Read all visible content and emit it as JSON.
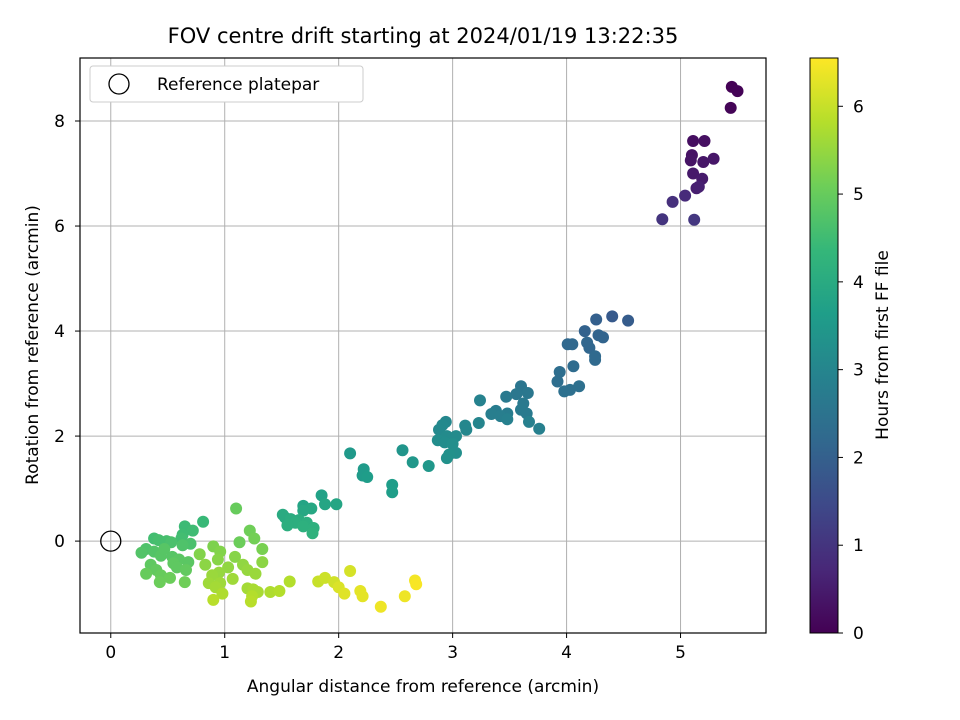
{
  "chart_data": {
    "type": "scatter",
    "title": "FOV centre drift starting at 2024/01/19 13:22:35",
    "xlabel": "Angular distance from reference (arcmin)",
    "ylabel": "Rotation from reference (arcmin)",
    "xlim": [
      -0.27,
      5.75
    ],
    "ylim": [
      -1.75,
      9.2
    ],
    "xticks": [
      0,
      1,
      2,
      3,
      4,
      5
    ],
    "yticks": [
      0,
      2,
      4,
      6,
      8
    ],
    "grid": true,
    "legend": {
      "position": "top-left",
      "entries": [
        "Reference platepar"
      ]
    },
    "reference_point": {
      "x": 0,
      "y": 0,
      "label": "Reference platepar"
    },
    "colorbar": {
      "label": "Hours from first FF file",
      "range": [
        0,
        6.55
      ],
      "ticks": [
        0,
        1,
        2,
        3,
        4,
        5,
        6
      ],
      "colormap": "viridis"
    },
    "colors": {
      "viridis": [
        "#440154",
        "#482878",
        "#3e4989",
        "#31688e",
        "#26828e",
        "#1f9e89",
        "#35b779",
        "#6ece58",
        "#b5de2b",
        "#fde725"
      ]
    },
    "points": [
      [
        5.45,
        8.65,
        0.02
      ],
      [
        5.5,
        8.57,
        0.04
      ],
      [
        5.44,
        8.25,
        0.07
      ],
      [
        5.11,
        7.62,
        0.25
      ],
      [
        5.21,
        7.62,
        0.28
      ],
      [
        5.1,
        7.35,
        0.32
      ],
      [
        5.09,
        7.25,
        0.35
      ],
      [
        5.2,
        7.22,
        0.38
      ],
      [
        5.29,
        7.28,
        0.4
      ],
      [
        5.11,
        7.0,
        0.45
      ],
      [
        5.19,
        6.9,
        0.48
      ],
      [
        5.14,
        6.72,
        0.55
      ],
      [
        5.16,
        6.75,
        0.58
      ],
      [
        5.04,
        6.58,
        0.8
      ],
      [
        4.93,
        6.46,
        0.9
      ],
      [
        4.84,
        6.13,
        1.0
      ],
      [
        5.12,
        6.12,
        1.05
      ],
      [
        4.4,
        4.28,
        1.85
      ],
      [
        4.54,
        4.2,
        1.9
      ],
      [
        4.26,
        4.22,
        2.0
      ],
      [
        4.16,
        4.0,
        2.05
      ],
      [
        4.28,
        3.92,
        2.1
      ],
      [
        4.32,
        3.88,
        2.1
      ],
      [
        4.18,
        3.78,
        2.15
      ],
      [
        4.2,
        3.68,
        2.15
      ],
      [
        4.01,
        3.75,
        2.2
      ],
      [
        4.05,
        3.75,
        2.2
      ],
      [
        4.25,
        3.52,
        2.25
      ],
      [
        4.25,
        3.45,
        2.25
      ],
      [
        4.06,
        3.33,
        2.3
      ],
      [
        3.94,
        3.22,
        2.35
      ],
      [
        3.92,
        3.04,
        2.35
      ],
      [
        4.11,
        2.95,
        2.4
      ],
      [
        3.98,
        2.85,
        2.4
      ],
      [
        4.03,
        2.88,
        2.4
      ],
      [
        3.6,
        2.95,
        2.55
      ],
      [
        3.66,
        2.82,
        2.6
      ],
      [
        3.56,
        2.8,
        2.6
      ],
      [
        3.47,
        2.75,
        2.65
      ],
      [
        3.62,
        2.62,
        2.65
      ],
      [
        3.6,
        2.5,
        2.7
      ],
      [
        3.65,
        2.43,
        2.7
      ],
      [
        3.48,
        2.43,
        2.75
      ],
      [
        3.38,
        2.48,
        2.75
      ],
      [
        3.34,
        2.42,
        2.8
      ],
      [
        3.42,
        2.38,
        2.8
      ],
      [
        3.48,
        2.32,
        2.85
      ],
      [
        3.67,
        2.27,
        2.85
      ],
      [
        3.76,
        2.14,
        2.85
      ],
      [
        3.24,
        2.68,
        2.9
      ],
      [
        3.23,
        2.25,
        3.0
      ],
      [
        3.11,
        2.2,
        3.05
      ],
      [
        3.12,
        2.12,
        3.05
      ],
      [
        2.94,
        2.27,
        3.05
      ],
      [
        2.91,
        2.21,
        3.1
      ],
      [
        2.88,
        2.12,
        3.1
      ],
      [
        2.95,
        2.0,
        3.15
      ],
      [
        3.03,
        2.0,
        3.15
      ],
      [
        2.87,
        1.92,
        3.2
      ],
      [
        2.93,
        1.88,
        3.2
      ],
      [
        3.0,
        1.85,
        3.25
      ],
      [
        3.03,
        1.68,
        3.25
      ],
      [
        2.97,
        1.65,
        3.3
      ],
      [
        2.95,
        1.58,
        3.3
      ],
      [
        2.56,
        1.73,
        3.4
      ],
      [
        2.65,
        1.5,
        3.45
      ],
      [
        2.79,
        1.43,
        3.45
      ],
      [
        2.1,
        1.67,
        3.5
      ],
      [
        2.22,
        1.37,
        3.55
      ],
      [
        2.21,
        1.25,
        3.55
      ],
      [
        2.25,
        1.22,
        3.6
      ],
      [
        2.47,
        1.07,
        3.6
      ],
      [
        2.47,
        0.93,
        3.65
      ],
      [
        1.85,
        0.87,
        3.75
      ],
      [
        1.69,
        0.67,
        3.8
      ],
      [
        1.88,
        0.7,
        3.85
      ],
      [
        1.98,
        0.7,
        3.85
      ],
      [
        1.76,
        0.62,
        3.9
      ],
      [
        1.69,
        0.58,
        3.9
      ],
      [
        1.51,
        0.5,
        4.0
      ],
      [
        1.53,
        0.45,
        4.0
      ],
      [
        1.58,
        0.42,
        4.05
      ],
      [
        1.65,
        0.4,
        4.05
      ],
      [
        1.62,
        0.35,
        4.1
      ],
      [
        1.72,
        0.35,
        4.1
      ],
      [
        1.55,
        0.3,
        4.1
      ],
      [
        1.69,
        0.28,
        4.15
      ],
      [
        1.78,
        0.25,
        4.15
      ],
      [
        1.77,
        0.15,
        4.2
      ],
      [
        0.81,
        0.37,
        4.4
      ],
      [
        0.65,
        0.28,
        4.45
      ],
      [
        0.72,
        0.2,
        4.5
      ],
      [
        0.63,
        0.12,
        4.5
      ],
      [
        0.62,
        0.05,
        4.55
      ],
      [
        0.38,
        0.05,
        4.55
      ],
      [
        0.42,
        0.02,
        4.6
      ],
      [
        0.49,
        0.0,
        4.6
      ],
      [
        0.53,
        -0.02,
        4.65
      ],
      [
        0.7,
        -0.05,
        4.65
      ],
      [
        0.63,
        -0.08,
        4.7
      ],
      [
        0.31,
        -0.15,
        4.7
      ],
      [
        0.38,
        -0.2,
        4.75
      ],
      [
        0.27,
        -0.22,
        4.75
      ],
      [
        0.44,
        -0.28,
        4.8
      ],
      [
        0.47,
        -0.15,
        4.8
      ],
      [
        0.54,
        -0.3,
        4.8
      ],
      [
        0.6,
        -0.35,
        4.85
      ],
      [
        0.68,
        -0.4,
        4.85
      ],
      [
        0.55,
        -0.42,
        4.9
      ],
      [
        0.35,
        -0.45,
        4.9
      ],
      [
        0.58,
        -0.5,
        4.9
      ],
      [
        0.4,
        -0.55,
        4.95
      ],
      [
        0.66,
        -0.55,
        4.95
      ],
      [
        0.31,
        -0.62,
        5.0
      ],
      [
        0.44,
        -0.65,
        5.0
      ],
      [
        0.52,
        -0.7,
        5.05
      ],
      [
        0.43,
        -0.78,
        5.05
      ],
      [
        0.65,
        -0.78,
        5.1
      ],
      [
        1.1,
        0.62,
        5.0
      ],
      [
        1.13,
        -0.02,
        5.05
      ],
      [
        1.22,
        0.2,
        5.1
      ],
      [
        1.26,
        0.05,
        5.15
      ],
      [
        1.33,
        -0.15,
        5.2
      ],
      [
        0.9,
        -0.1,
        5.25
      ],
      [
        0.96,
        -0.2,
        5.3
      ],
      [
        0.78,
        -0.25,
        5.3
      ],
      [
        1.09,
        -0.3,
        5.35
      ],
      [
        0.94,
        -0.35,
        5.35
      ],
      [
        1.33,
        -0.4,
        5.4
      ],
      [
        0.83,
        -0.45,
        5.4
      ],
      [
        1.16,
        -0.45,
        5.45
      ],
      [
        1.03,
        -0.5,
        5.45
      ],
      [
        1.2,
        -0.55,
        5.5
      ],
      [
        0.95,
        -0.6,
        5.5
      ],
      [
        1.27,
        -0.62,
        5.55
      ],
      [
        0.89,
        -0.65,
        5.55
      ],
      [
        1.07,
        -0.72,
        5.6
      ],
      [
        0.86,
        -0.8,
        5.6
      ],
      [
        0.96,
        -0.8,
        5.6
      ],
      [
        0.92,
        -0.88,
        5.65
      ],
      [
        1.2,
        -0.9,
        5.65
      ],
      [
        1.25,
        -0.92,
        5.7
      ],
      [
        1.29,
        -0.97,
        5.7
      ],
      [
        0.98,
        -1.0,
        5.75
      ],
      [
        1.4,
        -0.97,
        5.75
      ],
      [
        1.48,
        -0.95,
        5.8
      ],
      [
        1.24,
        -1.05,
        5.8
      ],
      [
        1.57,
        -0.77,
        5.8
      ],
      [
        0.9,
        -1.12,
        5.85
      ],
      [
        1.23,
        -1.15,
        5.85
      ],
      [
        1.82,
        -0.77,
        6.0
      ],
      [
        1.88,
        -0.7,
        6.05
      ],
      [
        1.96,
        -0.78,
        6.1
      ],
      [
        2.1,
        -0.57,
        6.15
      ],
      [
        2.0,
        -0.88,
        6.2
      ],
      [
        2.05,
        -1.0,
        6.25
      ],
      [
        2.19,
        -0.95,
        6.3
      ],
      [
        2.21,
        -1.05,
        6.3
      ],
      [
        2.37,
        -1.25,
        6.4
      ],
      [
        2.58,
        -1.05,
        6.4
      ],
      [
        2.67,
        -0.75,
        6.45
      ],
      [
        2.68,
        -0.82,
        6.5
      ]
    ]
  }
}
